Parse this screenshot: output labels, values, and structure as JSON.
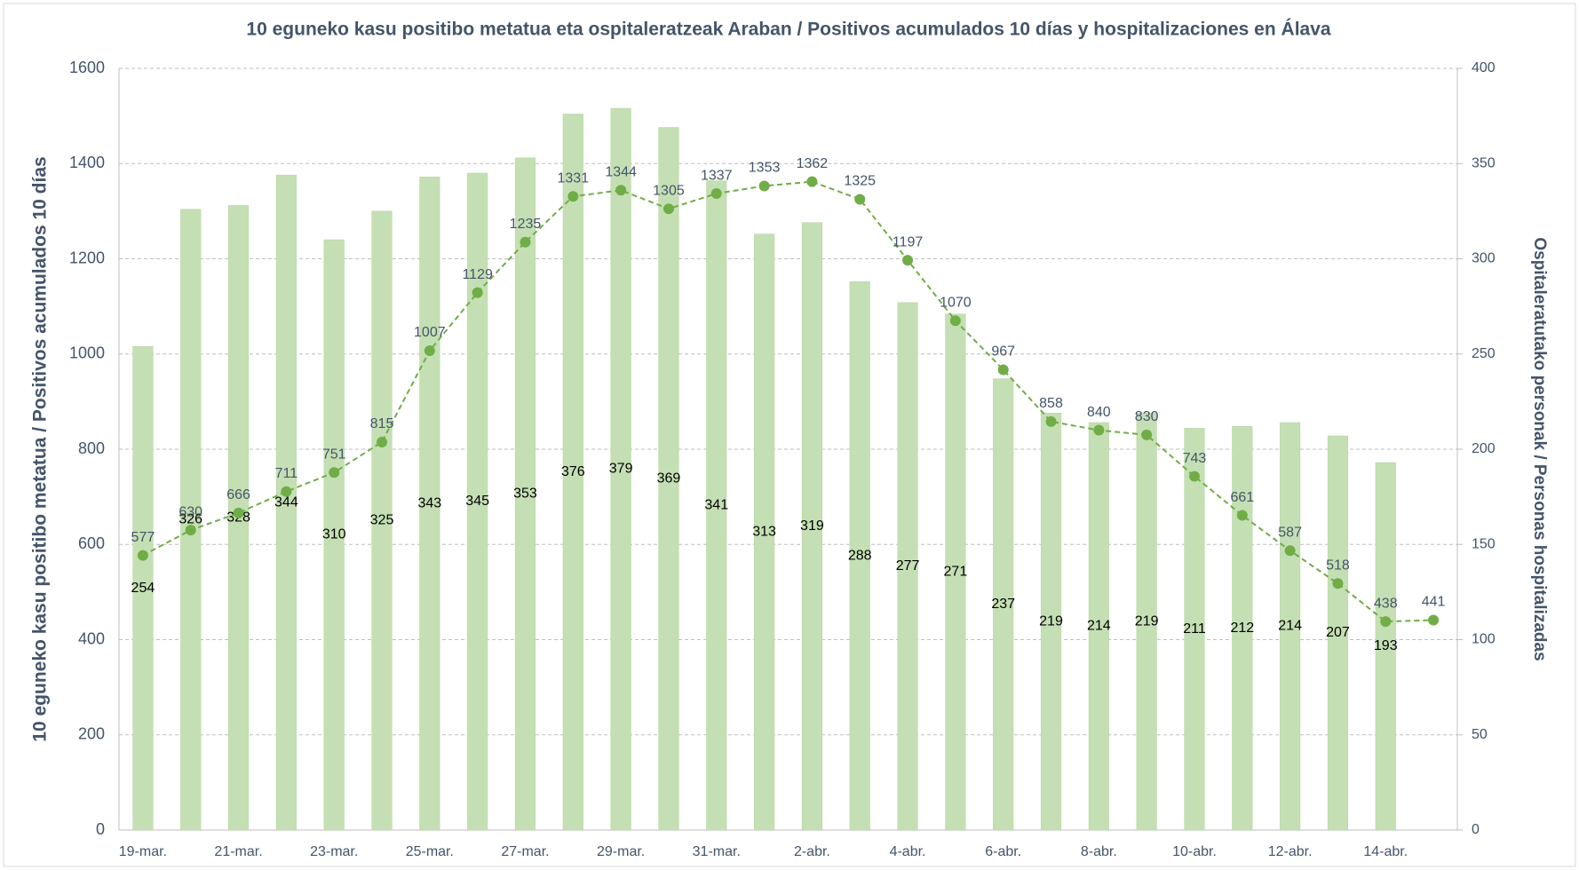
{
  "chart_data": {
    "type": "bar_line",
    "title": "10 eguneko kasu positibo metatua eta ospitaleratzeak Araban  / Positivos acumulados 10 días y hospitalizaciones en Álava",
    "y_label": "10 eguneko kasu positibo metatua  / Positivos acumulados 10 días",
    "y2_label": "Ospitaleratutako personak  / Personas hospitalizadas",
    "categories": [
      "19-mar.",
      null,
      "21-mar.",
      null,
      "23-mar.",
      null,
      "25-mar.",
      null,
      "27-mar.",
      null,
      "29-mar.",
      null,
      "31-mar.",
      null,
      "2-abr.",
      null,
      "4-abr.",
      null,
      "6-abr.",
      null,
      "8-abr.",
      null,
      "10-abr.",
      null,
      "12-abr.",
      null,
      "14-abr.",
      null
    ],
    "series": [
      {
        "type": "bar",
        "axis": "y2",
        "color": "#c5dfb4",
        "values": [
          254,
          326,
          328,
          344,
          310,
          325,
          343,
          345,
          353,
          376,
          379,
          369,
          341,
          313,
          319,
          288,
          277,
          271,
          237,
          219,
          214,
          219,
          211,
          212,
          214,
          207,
          193,
          null
        ]
      },
      {
        "type": "line",
        "axis": "y",
        "color": "#70ad47",
        "values": [
          577,
          630,
          666,
          711,
          751,
          815,
          1007,
          1129,
          1235,
          1331,
          1344,
          1305,
          1337,
          1353,
          1362,
          1325,
          1197,
          1070,
          967,
          858,
          840,
          830,
          743,
          661,
          587,
          518,
          438,
          441
        ]
      }
    ],
    "ylim": [
      0,
      1600
    ],
    "yticks": [
      0,
      200,
      400,
      600,
      800,
      1000,
      1200,
      1400,
      1600
    ],
    "y2lim": [
      0,
      400
    ],
    "y2ticks": [
      0,
      50,
      100,
      150,
      200,
      250,
      300,
      350,
      400
    ],
    "grid": true
  }
}
